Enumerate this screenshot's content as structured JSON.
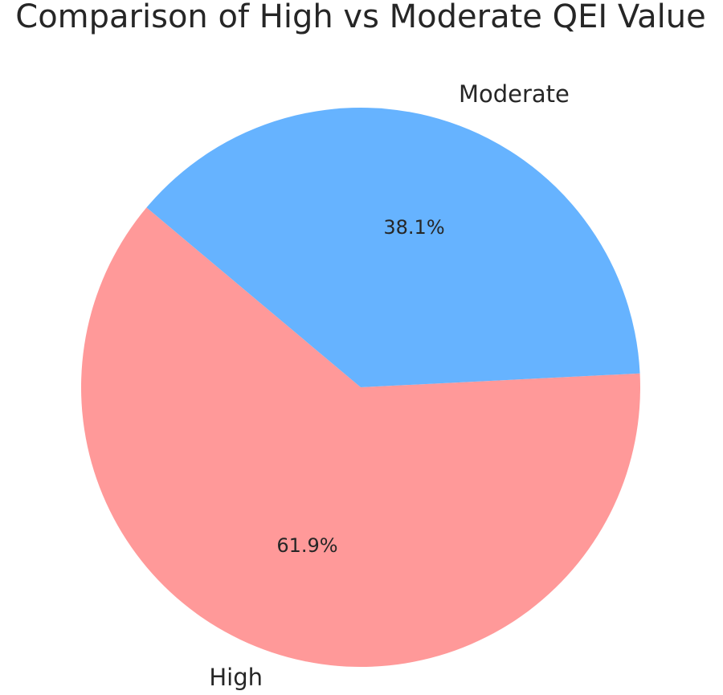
{
  "chart_data": {
    "type": "pie",
    "title": "Comparison of High vs Moderate QEI Value",
    "categories": [
      "High",
      "Moderate"
    ],
    "values": [
      61.9,
      38.1
    ],
    "value_labels": [
      "61.9%",
      "38.1%"
    ],
    "colors": [
      "#ff9999",
      "#66b3ff"
    ],
    "start_angle_deg": 140,
    "direction": "counterclockwise",
    "legend": "none"
  }
}
